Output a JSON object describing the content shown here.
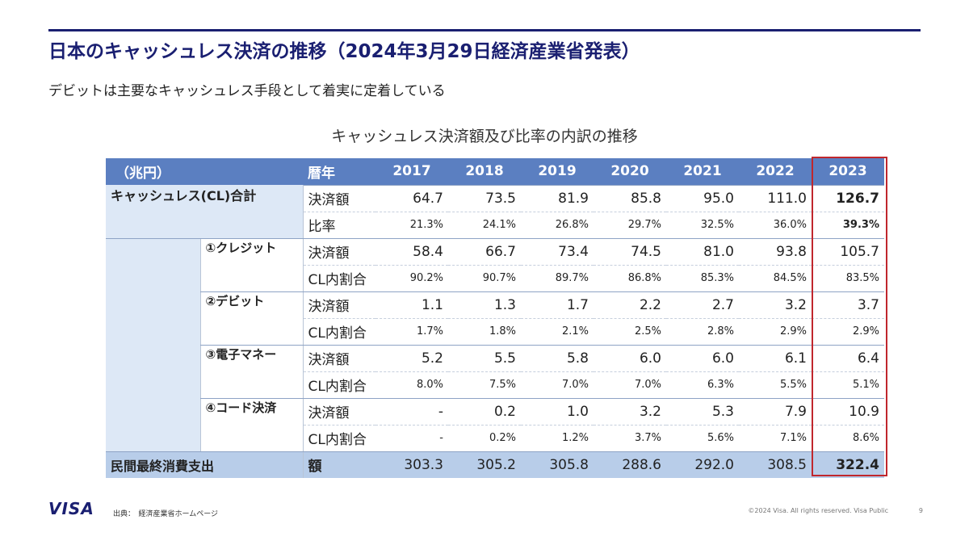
{
  "title": "日本のキャッシュレス決済の推移（2024年3月29日経済産業省発表）",
  "subtitle": "デビットは主要なキャッシュレス手段として着実に定着している",
  "table_title": "キャッシュレス決済額及び比率の内訳の推移",
  "header": {
    "unit": "（兆円）",
    "year_label": "暦年",
    "years": [
      "2017",
      "2018",
      "2019",
      "2020",
      "2021",
      "2022",
      "2023"
    ]
  },
  "total": {
    "label": "キャッシュレス(CL)合計",
    "amount_label": "決済額",
    "amounts": [
      "64.7",
      "73.5",
      "81.9",
      "85.8",
      "95.0",
      "111.0",
      "126.7"
    ],
    "ratio_label": "比率",
    "ratios": [
      "21.3%",
      "24.1%",
      "26.8%",
      "29.7%",
      "32.5%",
      "36.0%",
      "39.3%"
    ]
  },
  "breakdown": [
    {
      "label": "①クレジット",
      "amount_label": "決済額",
      "amounts": [
        "58.4",
        "66.7",
        "73.4",
        "74.5",
        "81.0",
        "93.8",
        "105.7"
      ],
      "share_label": "CL内割合",
      "shares": [
        "90.2%",
        "90.7%",
        "89.7%",
        "86.8%",
        "85.3%",
        "84.5%",
        "83.5%"
      ]
    },
    {
      "label": "②デビット",
      "amount_label": "決済額",
      "amounts": [
        "1.1",
        "1.3",
        "1.7",
        "2.2",
        "2.7",
        "3.2",
        "3.7"
      ],
      "share_label": "CL内割合",
      "shares": [
        "1.7%",
        "1.8%",
        "2.1%",
        "2.5%",
        "2.8%",
        "2.9%",
        "2.9%"
      ]
    },
    {
      "label": "③電子マネー",
      "amount_label": "決済額",
      "amounts": [
        "5.2",
        "5.5",
        "5.8",
        "6.0",
        "6.0",
        "6.1",
        "6.4"
      ],
      "share_label": "CL内割合",
      "shares": [
        "8.0%",
        "7.5%",
        "7.0%",
        "7.0%",
        "6.3%",
        "5.5%",
        "5.1%"
      ]
    },
    {
      "label": "④コード決済",
      "amount_label": "決済額",
      "amounts": [
        "-",
        "0.2",
        "1.0",
        "3.2",
        "5.3",
        "7.9",
        "10.9"
      ],
      "share_label": "CL内割合",
      "shares": [
        "-",
        "0.2%",
        "1.2%",
        "3.7%",
        "5.6%",
        "7.1%",
        "8.6%"
      ]
    }
  ],
  "spending": {
    "label": "民間最終消費支出",
    "type_label": "額",
    "amounts": [
      "303.3",
      "305.2",
      "305.8",
      "288.6",
      "292.0",
      "308.5",
      "322.4"
    ]
  },
  "footer": {
    "logo_text": "VISA",
    "source": "出典：　経済産業省ホームページ",
    "copyright": "©2024 Visa. All rights reserved. Visa Public",
    "page_number": "9"
  },
  "colors": {
    "brand": "#1a1f71",
    "header_fill": "#5b7fc1",
    "category_fill": "#dde8f6",
    "spending_fill": "#b8cde9",
    "highlight_border": "#c0272d"
  }
}
